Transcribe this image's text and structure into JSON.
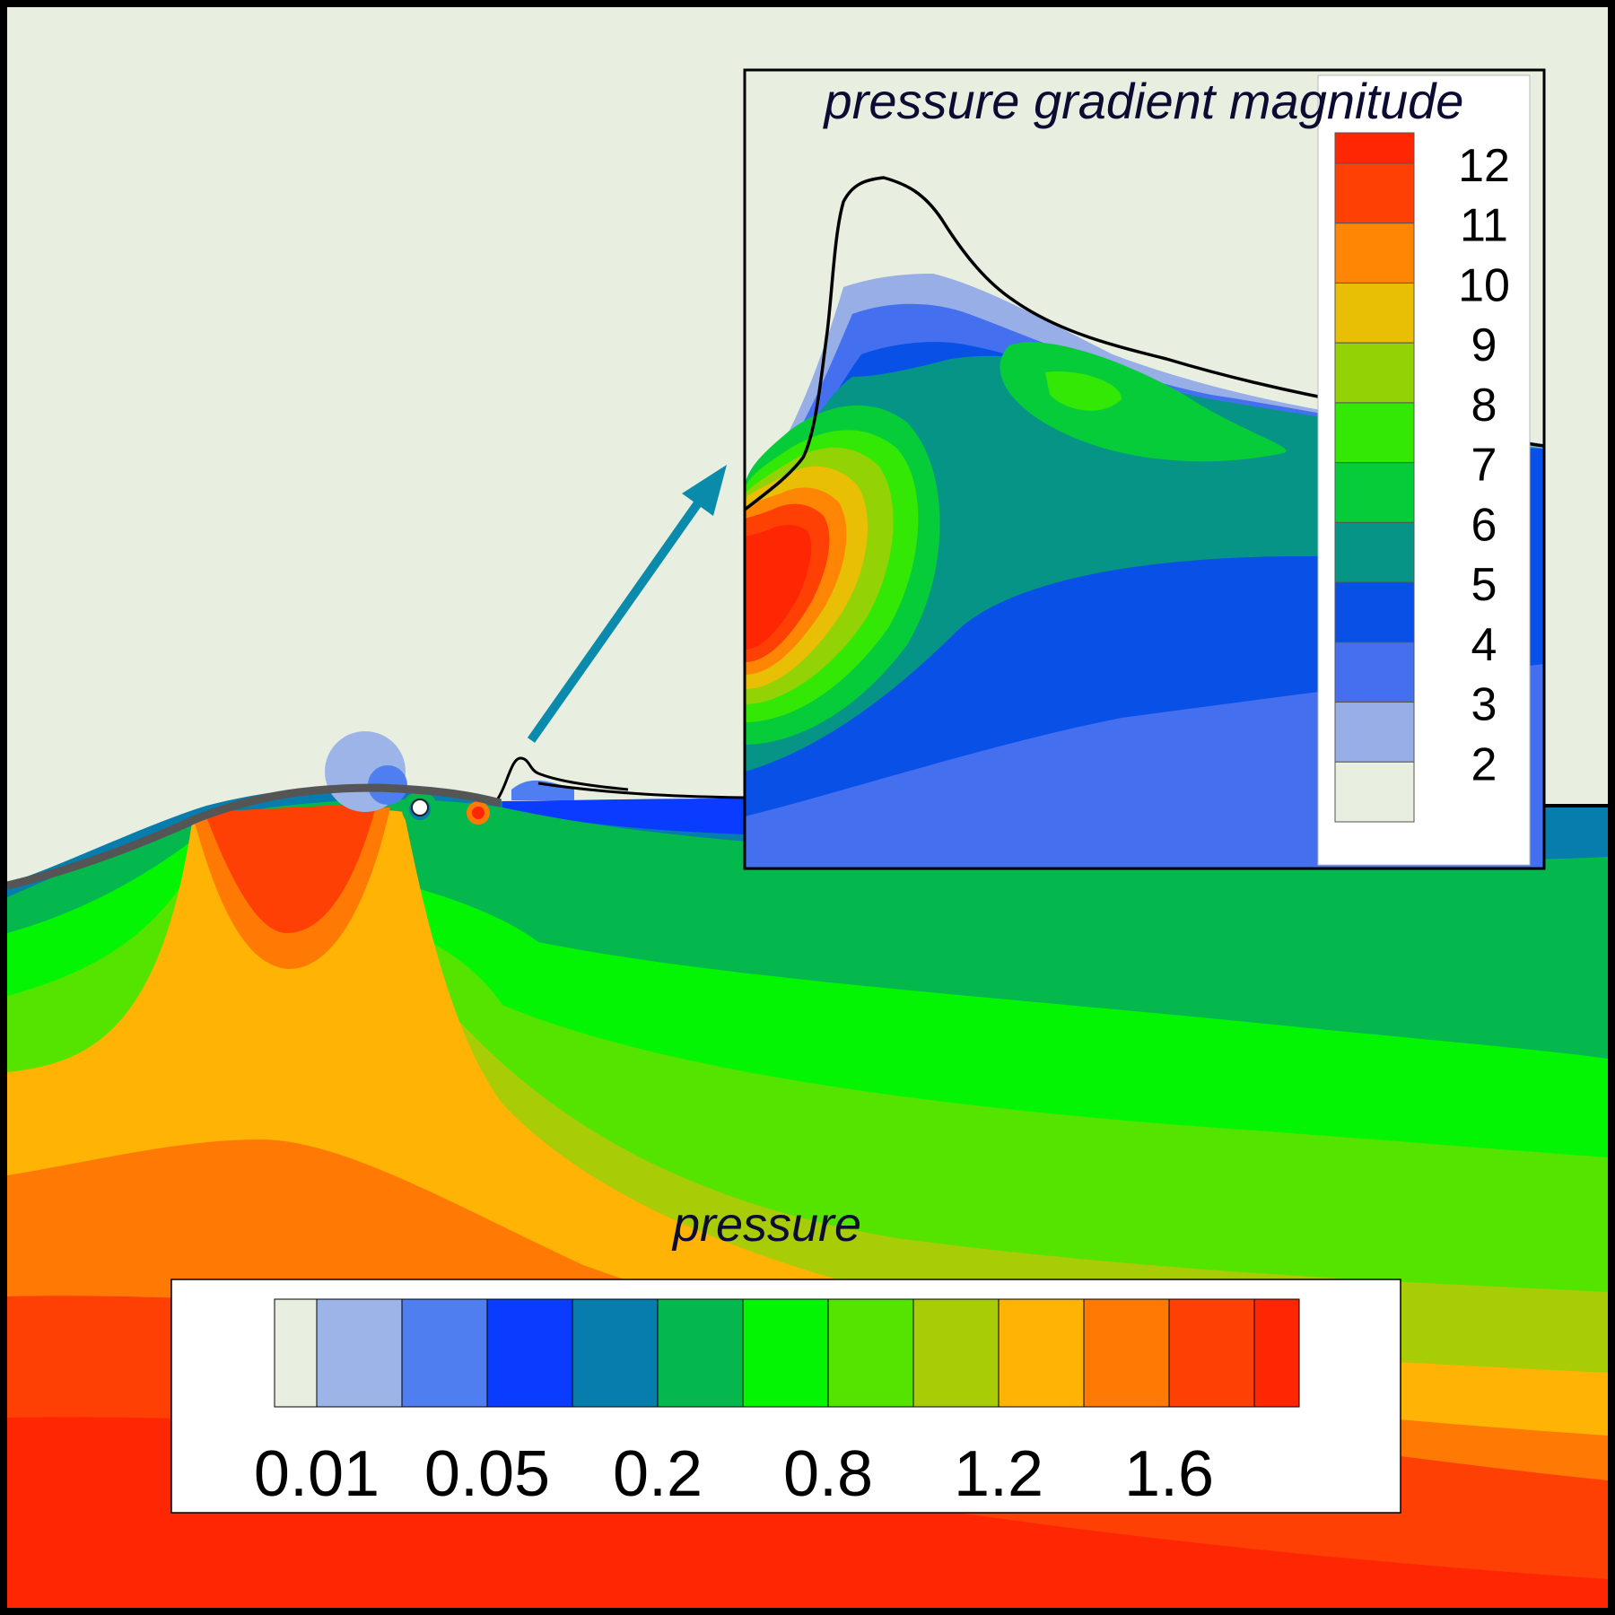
{
  "chart_data": [
    {
      "type": "heatmap",
      "title": "pressure",
      "colorbar_orientation": "horizontal",
      "colorbar_placement": "bottom",
      "tick_labels": [
        "0.01",
        "0.05",
        "0.2",
        "0.8",
        "1.2",
        "1.6"
      ],
      "levels": [
        {
          "color": "#e8eee0"
        },
        {
          "color": "#9db4e8"
        },
        {
          "color": "#4f7ef0"
        },
        {
          "color": "#0a3cff"
        },
        {
          "color": "#067dad"
        },
        {
          "color": "#05b84e"
        },
        {
          "color": "#04f504"
        },
        {
          "color": "#55e300"
        },
        {
          "color": "#a8cc05"
        },
        {
          "color": "#ffb304"
        },
        {
          "color": "#ff7a04"
        },
        {
          "color": "#ff4004"
        },
        {
          "color": "#ff2604"
        }
      ]
    },
    {
      "type": "heatmap",
      "title": "pressure gradient magnitude",
      "colorbar_orientation": "vertical",
      "colorbar_placement": "right",
      "tick_labels": [
        "12",
        "11",
        "10",
        "9",
        "8",
        "7",
        "6",
        "5",
        "4",
        "3",
        "2"
      ],
      "levels": [
        {
          "color": "#ff2604"
        },
        {
          "color": "#ff4004"
        },
        {
          "color": "#ff8604"
        },
        {
          "color": "#e8bf04"
        },
        {
          "color": "#93d205"
        },
        {
          "color": "#33e804"
        },
        {
          "color": "#06cc3a"
        },
        {
          "color": "#069486"
        },
        {
          "color": "#0850e6"
        },
        {
          "color": "#4470f0"
        },
        {
          "color": "#97aee6"
        },
        {
          "color": "#e8eee0"
        }
      ]
    }
  ],
  "arrow_color": "#0b8bab",
  "outline_color": "#555555"
}
